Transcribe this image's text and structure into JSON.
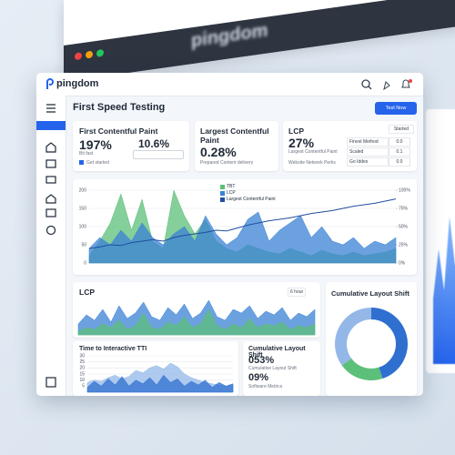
{
  "backdrop": {
    "logo": "pingdom"
  },
  "header": {
    "logo": "pingdom"
  },
  "page": {
    "title": "First Speed Testing",
    "button": "Test Now"
  },
  "cards": [
    {
      "title": "First Contentful Paint",
      "metric": "197%",
      "metric2": "10.6%",
      "caption": "Bit fast",
      "note": "Get started"
    },
    {
      "title": "Largest Contentful Paint",
      "metric": "0.28%",
      "caption": "Prepared Content delivery"
    },
    {
      "title": "LCP",
      "metric": "27%",
      "caption": "Largest Contentful Paint",
      "caption2": "Website Network Perks",
      "badge": "Started",
      "rows": [
        [
          "Finest Method",
          "0.0"
        ],
        [
          "Scaled",
          "0.1"
        ],
        [
          "Go Iddes",
          "0.0"
        ]
      ]
    }
  ],
  "main_chart": {
    "type": "area",
    "ylim": [
      0,
      200
    ],
    "yticks": [
      0,
      50,
      100,
      150,
      200
    ],
    "y2lim": [
      0,
      100
    ],
    "y2ticks": [
      {
        "value": 0,
        "label": "0%"
      },
      {
        "value": 25,
        "label": "25%"
      },
      {
        "value": 50,
        "label": "50%"
      },
      {
        "value": 75,
        "label": "75%"
      },
      {
        "value": 100,
        "label": "100%"
      }
    ],
    "grid": true,
    "series": [
      {
        "name": "TBT",
        "kind": "area",
        "color": "#5cbf7a",
        "values": [
          20,
          60,
          110,
          190,
          90,
          175,
          60,
          40,
          200,
          130,
          80,
          120,
          60,
          40,
          30,
          50,
          40,
          30,
          25,
          40,
          30,
          20,
          35,
          25,
          20,
          30,
          20,
          25,
          30,
          40
        ]
      },
      {
        "name": "LCP",
        "kind": "area",
        "color": "#3b82d6",
        "values": [
          40,
          70,
          50,
          90,
          60,
          110,
          70,
          50,
          80,
          100,
          60,
          130,
          80,
          50,
          70,
          120,
          140,
          60,
          90,
          110,
          130,
          70,
          100,
          60,
          50,
          70,
          40,
          60,
          50,
          70
        ]
      },
      {
        "name": "Largest Contentful Paint",
        "kind": "line",
        "color": "#1e4fa0",
        "axis": "y2",
        "values": [
          20,
          22,
          25,
          24,
          28,
          30,
          32,
          30,
          35,
          38,
          40,
          42,
          45,
          44,
          48,
          52,
          55,
          58,
          60,
          62,
          65,
          68,
          70,
          72,
          75,
          78,
          80,
          82,
          85,
          88
        ]
      }
    ]
  },
  "lcp_chart": {
    "type": "area",
    "title": "LCP",
    "dropdown": "6 hour",
    "ylim": [
      0,
      100
    ],
    "grid": false,
    "series": [
      {
        "name": "LCP",
        "kind": "area",
        "color": "#3b82d6",
        "values": [
          30,
          55,
          40,
          70,
          35,
          80,
          45,
          60,
          90,
          50,
          40,
          75,
          55,
          85,
          45,
          60,
          95,
          50,
          40,
          70,
          60,
          80,
          45,
          65,
          55,
          75,
          40,
          60,
          50,
          70
        ]
      },
      {
        "name": "TBT",
        "kind": "area",
        "color": "#5cbf7a",
        "values": [
          10,
          20,
          15,
          30,
          20,
          40,
          15,
          25,
          60,
          20,
          15,
          35,
          25,
          50,
          20,
          30,
          70,
          25,
          15,
          30,
          20,
          45,
          20,
          30,
          25,
          35,
          15,
          25,
          20,
          30
        ]
      }
    ]
  },
  "tti_chart": {
    "type": "area",
    "title": "Time to Interactive TTI",
    "ylim": [
      0,
      30
    ],
    "yticks": [
      5,
      10,
      15,
      20,
      25,
      30
    ],
    "grid": true,
    "series": [
      {
        "name": "TTI",
        "kind": "area",
        "color": "#93b8e8",
        "values": [
          8,
          10,
          9,
          12,
          14,
          11,
          13,
          18,
          16,
          20,
          22,
          19,
          24,
          21,
          15,
          12,
          10,
          8,
          7,
          6,
          5,
          6
        ]
      },
      {
        "name": "TTI base",
        "kind": "area",
        "color": "#2f6fd0",
        "values": [
          4,
          9,
          5,
          11,
          6,
          13,
          5,
          10,
          7,
          12,
          6,
          14,
          8,
          11,
          5,
          9,
          6,
          10,
          4,
          8,
          5,
          7
        ]
      }
    ]
  },
  "cls_card": {
    "title": "Cumulative Layout Shift",
    "metric": "053%",
    "caption": "Cumulative Layout Shift",
    "metric2": "09%",
    "caption2": "Software Metrics"
  },
  "donut": {
    "type": "pie",
    "title": "Cumulative Layout Shift",
    "values": [
      45,
      20,
      35
    ],
    "colors": [
      "#2f6fd0",
      "#5cbf7a",
      "#93b8e8"
    ]
  }
}
